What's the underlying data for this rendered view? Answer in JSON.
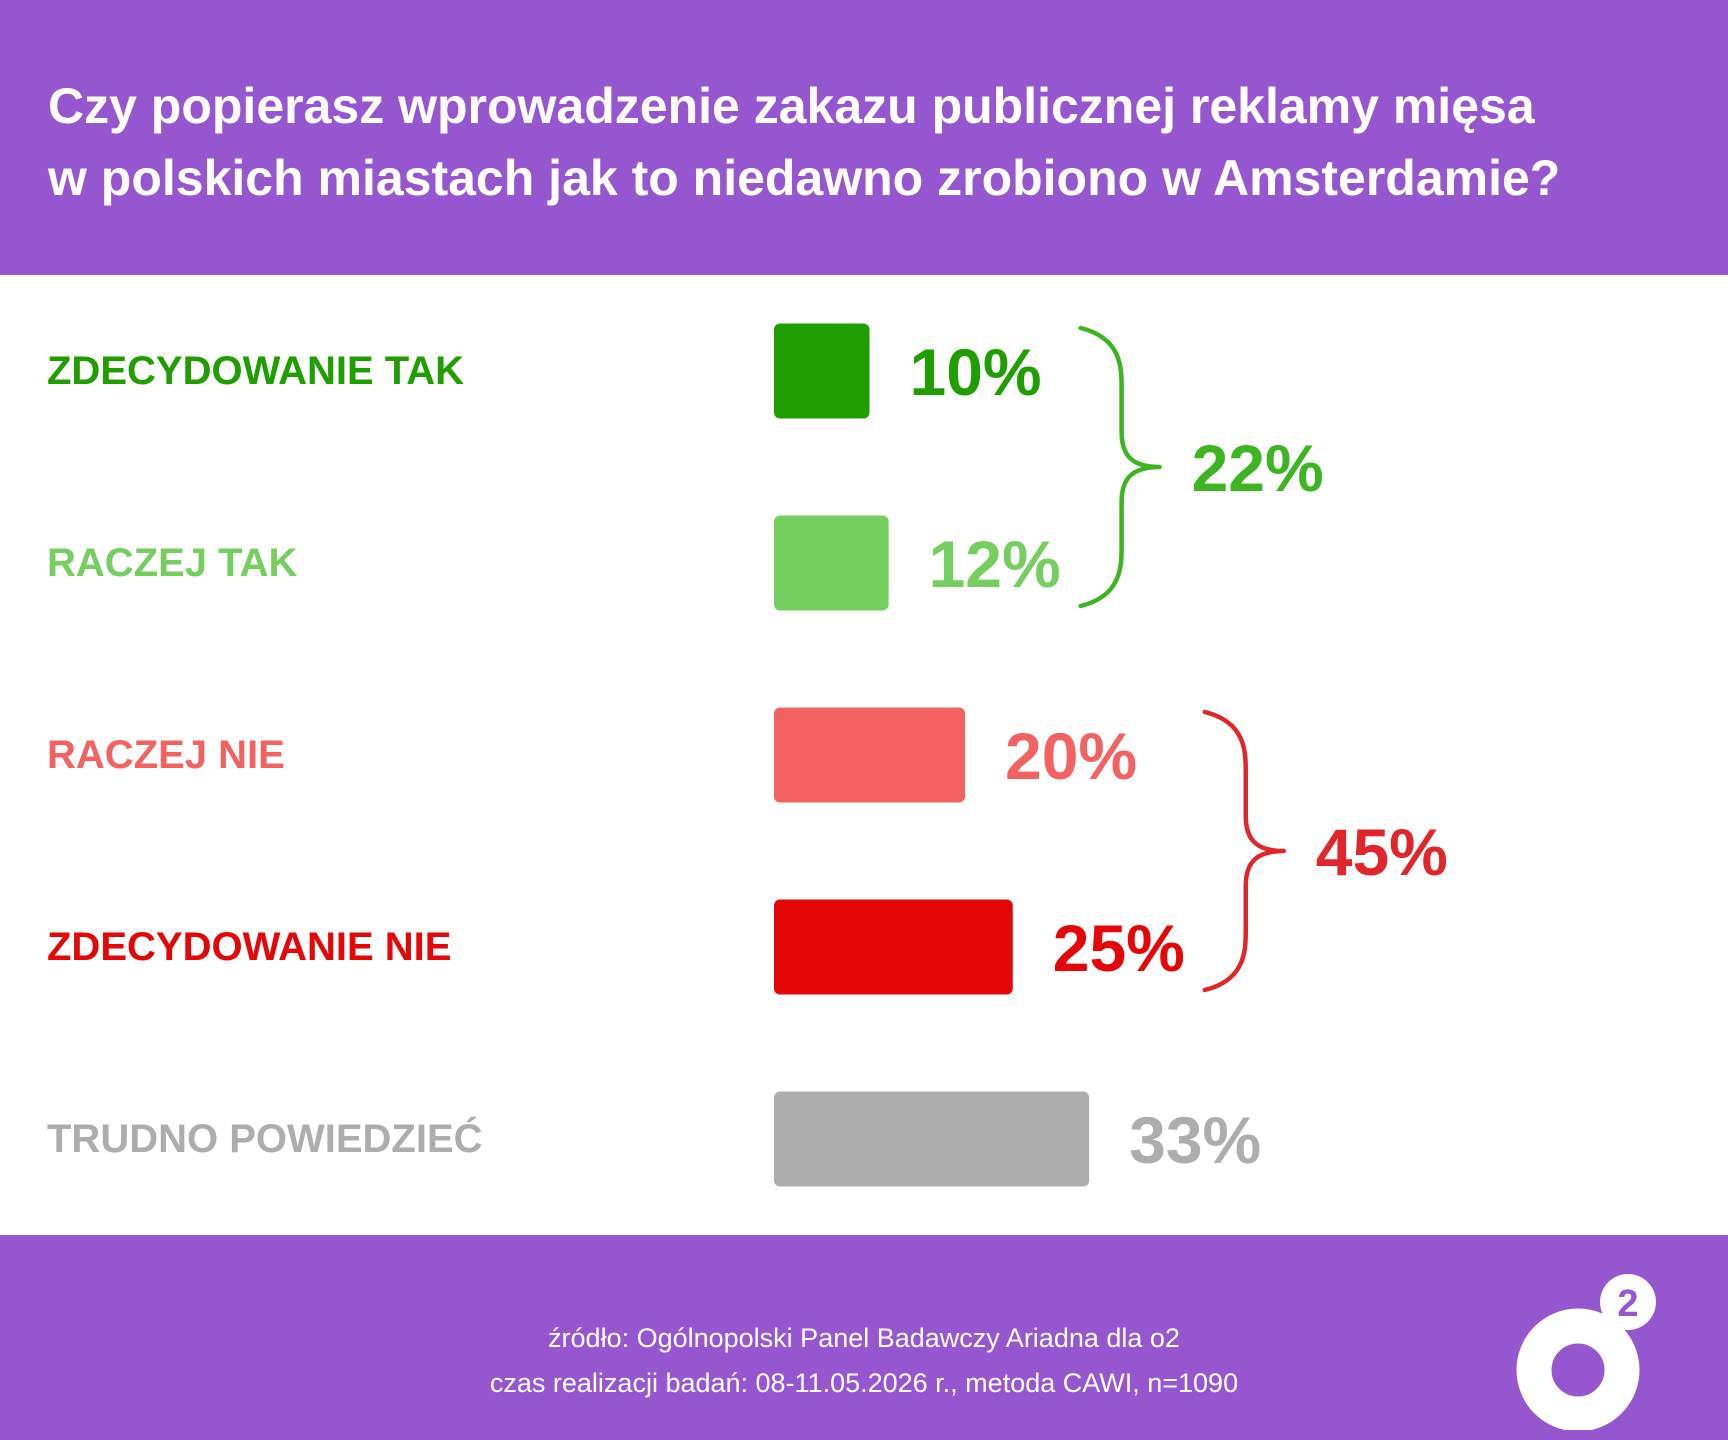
{
  "header": {
    "title_line1": "Czy popierasz wprowadzenie zakazu publicznej reklamy mięsa",
    "title_line2": "w polskich miastach jak to niedawno zrobiono w Amsterdamie?"
  },
  "chart_data": {
    "type": "bar",
    "orientation": "horizontal",
    "title": "Czy popierasz wprowadzenie zakazu publicznej reklamy mięsa w polskich miastach jak to niedawno zrobiono w Amsterdamie?",
    "categories": [
      "ZDECYDOWANIE TAK",
      "RACZEJ TAK",
      "RACZEJ NIE",
      "ZDECYDOWANIE NIE",
      "TRUDNO POWIEDZIEĆ"
    ],
    "values": [
      10,
      12,
      20,
      25,
      33
    ],
    "value_labels": [
      "10%",
      "12%",
      "20%",
      "25%",
      "33%"
    ],
    "unit": "%",
    "colors": [
      "#1f9e00",
      "#74cf5f",
      "#f46161",
      "#e50707",
      "#adadad"
    ],
    "groups": [
      {
        "members": [
          "ZDECYDOWANIE TAK",
          "RACZEJ TAK"
        ],
        "value": 22,
        "label": "22%",
        "color": "#3cb521"
      },
      {
        "members": [
          "RACZEJ NIE",
          "ZDECYDOWANIE NIE"
        ],
        "value": 45,
        "label": "45%",
        "color": "#e0262b"
      }
    ],
    "grid": false,
    "legend": "none"
  },
  "footer": {
    "source_line1": "źródło: Ogólnopolski Panel Badawczy Ariadna dla o2",
    "source_line2": "czas realizacji badań: 08-11.05.2026 r., metoda CAWI, n=1090",
    "logo_text": "o",
    "logo_superscript": "2"
  }
}
